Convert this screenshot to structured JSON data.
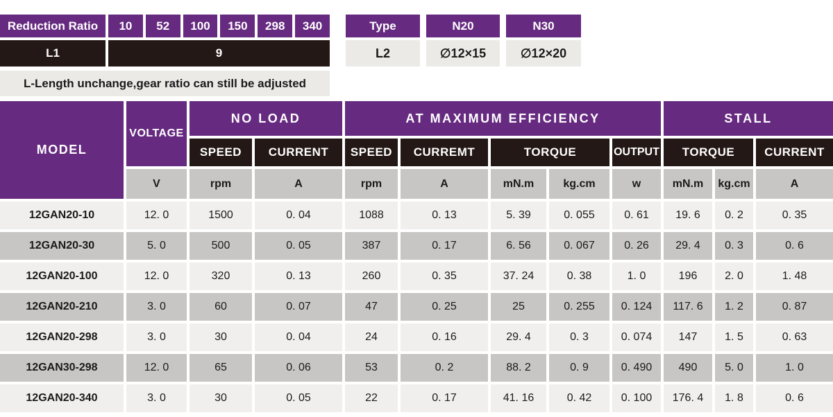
{
  "colors": {
    "purple": "#662a80",
    "dark": "#231815",
    "gray": "#c7c6c5",
    "light": "#f0efee",
    "note": "#ebeae7"
  },
  "top_left": {
    "header": "Reduction Ratio",
    "ratios": [
      "10",
      "52",
      "100",
      "150",
      "298",
      "340"
    ],
    "l1": {
      "label": "L1",
      "value": "9"
    },
    "note": "L-Length unchange,gear ratio can still be adjusted"
  },
  "top_right": {
    "header": "Type",
    "types": [
      "N20",
      "N30"
    ],
    "l2": {
      "label": "L2",
      "values": [
        "∅12×15",
        "∅12×20"
      ]
    }
  },
  "spec_table": {
    "headers": {
      "model": "MODEL",
      "voltage": "VOLTAGE",
      "no_load": "NO LOAD",
      "max_efficiency": "AT MAXIMUM EFFICIENCY",
      "stall": "STALL",
      "nl_speed": "SPEED",
      "nl_current": "CURRENT",
      "me_speed": "SPEED",
      "me_current": "CURREMT",
      "me_torque": "TORQUE",
      "output": "OUTPUT",
      "st_torque": "TORQUE",
      "st_current": "CURRENT"
    },
    "units": [
      "V",
      "rpm",
      "A",
      "rpm",
      "A",
      "mN.m",
      "kg.cm",
      "w",
      "mN.m",
      "kg.cm",
      "A"
    ],
    "rows": [
      {
        "model": "12GAN20-10",
        "values": [
          "12. 0",
          "1500",
          "0. 04",
          "1088",
          "0. 13",
          "5. 39",
          "0. 055",
          "0. 61",
          "19. 6",
          "0. 2",
          "0. 35"
        ]
      },
      {
        "model": "12GAN20-30",
        "values": [
          "5. 0",
          "500",
          "0. 05",
          "387",
          "0. 17",
          "6. 56",
          "0. 067",
          "0. 26",
          "29. 4",
          "0. 3",
          "0. 6"
        ]
      },
      {
        "model": "12GAN20-100",
        "values": [
          "12. 0",
          "320",
          "0. 13",
          "260",
          "0. 35",
          "37. 24",
          "0. 38",
          "1. 0",
          "196",
          "2. 0",
          "1. 48"
        ]
      },
      {
        "model": "12GAN20-210",
        "values": [
          "3. 0",
          "60",
          "0. 07",
          "47",
          "0. 25",
          "25",
          "0. 255",
          "0. 124",
          "117. 6",
          "1. 2",
          "0. 87"
        ]
      },
      {
        "model": "12GAN20-298",
        "values": [
          "3. 0",
          "30",
          "0. 04",
          "24",
          "0. 16",
          "29. 4",
          "0. 3",
          "0. 074",
          "147",
          "1. 5",
          "0. 63"
        ]
      },
      {
        "model": "12GAN30-298",
        "values": [
          "12. 0",
          "65",
          "0. 06",
          "53",
          "0. 2",
          "88. 2",
          "0. 9",
          "0. 490",
          "490",
          "5. 0",
          "1. 0"
        ]
      },
      {
        "model": "12GAN20-340",
        "values": [
          "3. 0",
          "30",
          "0. 05",
          "22",
          "0. 17",
          "41. 16",
          "0. 42",
          "0. 100",
          "176. 4",
          "1. 8",
          "0. 6"
        ]
      }
    ]
  }
}
